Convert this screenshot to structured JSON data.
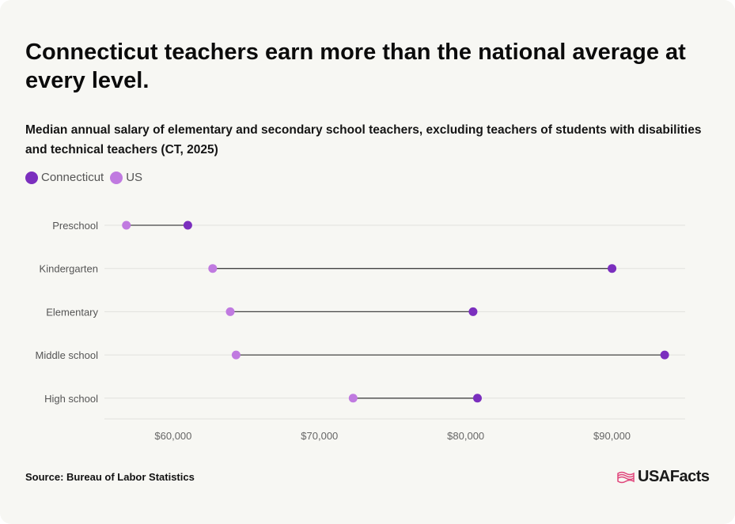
{
  "title": "Connecticut teachers earn more than the national average at every level.",
  "subtitle": "Median annual salary of elementary and secondary school teachers, excluding teachers of students with disabilities and technical teachers (CT, 2025)",
  "legend": [
    {
      "label": "Connecticut",
      "color": "#7b2fbe"
    },
    {
      "label": "US",
      "color": "#c07ae0"
    }
  ],
  "source": "Source: Bureau of Labor Statistics",
  "logo": {
    "text": "USAFacts",
    "icon": "us-flag-icon",
    "color": "#e0457b"
  },
  "chart_data": {
    "type": "dumbbell",
    "title": "",
    "xlabel": "",
    "ylabel": "",
    "categories": [
      "Preschool",
      "Kindergarten",
      "Elementary",
      "Middle school",
      "High school"
    ],
    "series": [
      {
        "name": "Connecticut",
        "color": "#7b2fbe",
        "values": [
          61000,
          90000,
          80500,
          93600,
          80800
        ]
      },
      {
        "name": "US",
        "color": "#c07ae0",
        "values": [
          56800,
          62700,
          63900,
          64300,
          72300
        ]
      }
    ],
    "xlim": [
      55300,
      95000
    ],
    "xticks": [
      60000,
      70000,
      80000,
      90000
    ],
    "xtick_labels": [
      "$60,000",
      "$70,000",
      "$80,000",
      "$90,000"
    ],
    "grid": true
  }
}
